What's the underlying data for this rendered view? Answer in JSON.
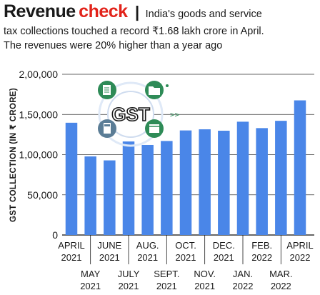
{
  "header": {
    "title_main": "Revenue",
    "title_accent": "check",
    "separator": "|",
    "subtitle_line1": "India's goods and service",
    "subtitle_line2": "tax collections touched a record ₹1.68 lakh crore in April.",
    "subtitle_line3": "The revenues were 20% higher than a year ago"
  },
  "colors": {
    "bar": "#4a86e8",
    "accent": "#e2231a",
    "grid": "#333333"
  },
  "icon_label": "GST",
  "icons": [
    "document-icon",
    "folder-icon",
    "calculator-icon",
    "calendar-icon",
    "gst-icon"
  ],
  "chart_data": {
    "type": "bar",
    "title": "",
    "ylabel": "GST COLLECTION (IN ₹ CRORE)",
    "ylim": [
      0,
      200000
    ],
    "yticks": [
      "0",
      "50,000",
      "1,00,000",
      "1,50,000",
      "2,00,000"
    ],
    "ytick_values": [
      0,
      50000,
      100000,
      150000,
      200000
    ],
    "grid": true,
    "categories": [
      [
        "APRIL",
        "2021"
      ],
      [
        "MAY",
        "2021"
      ],
      [
        "JUNE",
        "2021"
      ],
      [
        "JULY",
        "2021"
      ],
      [
        "AUG.",
        "2021"
      ],
      [
        "SEPT.",
        "2021"
      ],
      [
        "OCT.",
        "2021"
      ],
      [
        "NOV.",
        "2021"
      ],
      [
        "DEC.",
        "2021"
      ],
      [
        "JAN.",
        "2022"
      ],
      [
        "FEB.",
        "2022"
      ],
      [
        "MAR.",
        "2022"
      ],
      [
        "APRIL",
        "2022"
      ]
    ],
    "values": [
      139708,
      97821,
      92849,
      116393,
      112020,
      117010,
      130127,
      131526,
      129780,
      140986,
      133026,
      142095,
      167540
    ]
  }
}
